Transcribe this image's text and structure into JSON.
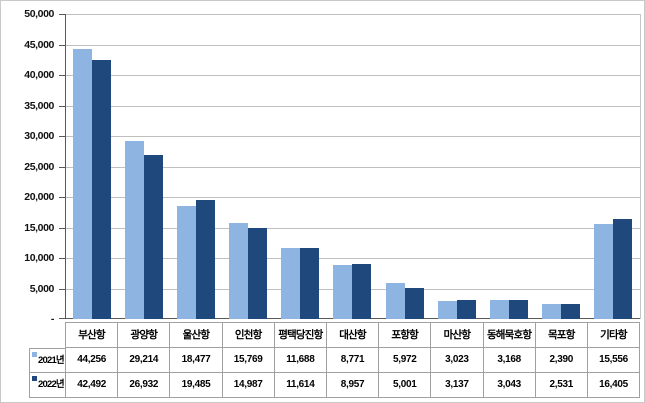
{
  "figure": {
    "background": "#FFFFFF",
    "border_color": "#C9C9C9"
  },
  "chart_data": {
    "type": "bar",
    "title": "",
    "xlabel": "",
    "ylabel": "",
    "categories": [
      "부산항",
      "광양항",
      "울산항",
      "인천항",
      "평택당진항",
      "대산항",
      "포항항",
      "마산항",
      "동해묵호항",
      "목포항",
      "기타항"
    ],
    "series": [
      {
        "name": "2021년",
        "color": "#8EB4E2",
        "values": [
          44256,
          29214,
          18477,
          15769,
          11688,
          8771,
          5972,
          3023,
          3168,
          2390,
          15556
        ],
        "labels": [
          "44,256",
          "29,214",
          "18,477",
          "15,769",
          "11,688",
          "8,771",
          "5,972",
          "3,023",
          "3,168",
          "2,390",
          "15,556"
        ]
      },
      {
        "name": "2022년",
        "color": "#1F497D",
        "values": [
          42492,
          26932,
          19485,
          14987,
          11614,
          8957,
          5001,
          3137,
          3043,
          2531,
          16405
        ],
        "labels": [
          "42,492",
          "26,932",
          "19,485",
          "14,987",
          "11,614",
          "8,957",
          "5,001",
          "3,137",
          "3,043",
          "2,531",
          "16,405"
        ]
      }
    ],
    "ylim": [
      0,
      50000
    ],
    "ytick_step": 5000,
    "ytick_labels": [
      "50,000",
      "45,000",
      "40,000",
      "35,000",
      "30,000",
      "25,000",
      "20,000",
      "15,000",
      "10,000",
      "5,000",
      "-"
    ],
    "grid": true,
    "gridline_color": "#BFBFBF",
    "axis_color": "#595959",
    "table_border_color": "#A0A0A0",
    "text_color": "#000000",
    "legend_position": "table-left-column"
  }
}
